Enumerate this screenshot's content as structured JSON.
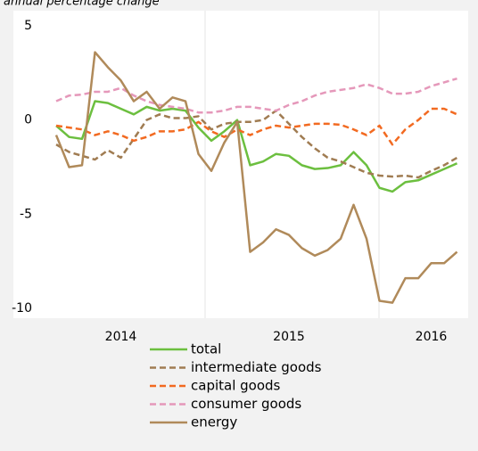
{
  "chart_data": {
    "type": "line",
    "subtitle": "annual percentage change",
    "categories": [
      null,
      null,
      null,
      null,
      null,
      "2014",
      null,
      null,
      null,
      null,
      null,
      null,
      null,
      null,
      null,
      null,
      null,
      null,
      "2015",
      null,
      null,
      null,
      null,
      null,
      null,
      null,
      null,
      null,
      null,
      "2016",
      null,
      null
    ],
    "ylim": [
      -10,
      5
    ],
    "yticks": [
      5,
      0,
      -5,
      -10
    ],
    "grid": false,
    "legend": "bottom",
    "series": [
      {
        "name": "total",
        "color": "#6cbf3f",
        "dashed": false,
        "values": [
          -0.3,
          -0.9,
          -1.0,
          1.0,
          0.9,
          0.6,
          0.3,
          0.7,
          0.5,
          0.6,
          0.5,
          -0.4,
          -1.1,
          -0.6,
          0.0,
          -2.4,
          -2.2,
          -1.8,
          -1.9,
          -2.4,
          -2.6,
          -2.55,
          -2.4,
          -1.7,
          -2.4,
          -3.6,
          -3.8,
          -3.3,
          -3.2,
          -2.9,
          -2.6,
          -2.3
        ]
      },
      {
        "name": "intermediate goods",
        "color": "#a07c52",
        "dashed": true,
        "values": [
          -1.3,
          -1.7,
          -1.9,
          -2.1,
          -1.6,
          -2.0,
          -1.0,
          0.0,
          0.3,
          0.1,
          0.1,
          0.2,
          -0.5,
          -0.2,
          -0.1,
          -0.1,
          0.0,
          0.5,
          -0.2,
          -0.9,
          -1.5,
          -2.0,
          -2.2,
          -2.5,
          -2.8,
          -2.95,
          -3.0,
          -2.95,
          -3.05,
          -2.7,
          -2.4,
          -2.0
        ]
      },
      {
        "name": "capital goods",
        "color": "#f26a21",
        "dashed": true,
        "values": [
          -0.3,
          -0.4,
          -0.5,
          -0.8,
          -0.6,
          -0.8,
          -1.1,
          -0.9,
          -0.6,
          -0.6,
          -0.5,
          -0.1,
          -0.6,
          -0.9,
          -0.5,
          -0.8,
          -0.5,
          -0.3,
          -0.4,
          -0.3,
          -0.2,
          -0.2,
          -0.25,
          -0.5,
          -0.8,
          -0.3,
          -1.3,
          -0.5,
          0.0,
          0.6,
          0.6,
          0.3
        ]
      },
      {
        "name": "consumer goods",
        "color": "#e598ba",
        "dashed": true,
        "values": [
          1.0,
          1.3,
          1.35,
          1.5,
          1.5,
          1.7,
          1.3,
          1.0,
          0.8,
          0.7,
          0.6,
          0.4,
          0.4,
          0.5,
          0.7,
          0.7,
          0.6,
          0.5,
          0.8,
          1.0,
          1.3,
          1.5,
          1.6,
          1.7,
          1.9,
          1.7,
          1.4,
          1.4,
          1.5,
          1.8,
          2.0,
          2.2
        ]
      },
      {
        "name": "energy",
        "color": "#b08a5a",
        "dashed": false,
        "values": [
          -0.8,
          -2.5,
          -2.4,
          3.6,
          2.8,
          2.1,
          1.0,
          1.5,
          0.6,
          1.2,
          1.0,
          -1.8,
          -2.7,
          -1.2,
          -0.1,
          -7.0,
          -6.5,
          -5.8,
          -6.1,
          -6.8,
          -7.2,
          -6.9,
          -6.3,
          -4.5,
          -6.3,
          -9.6,
          -9.7,
          -8.4,
          -8.4,
          -7.6,
          -7.6,
          -7.0
        ]
      }
    ]
  }
}
